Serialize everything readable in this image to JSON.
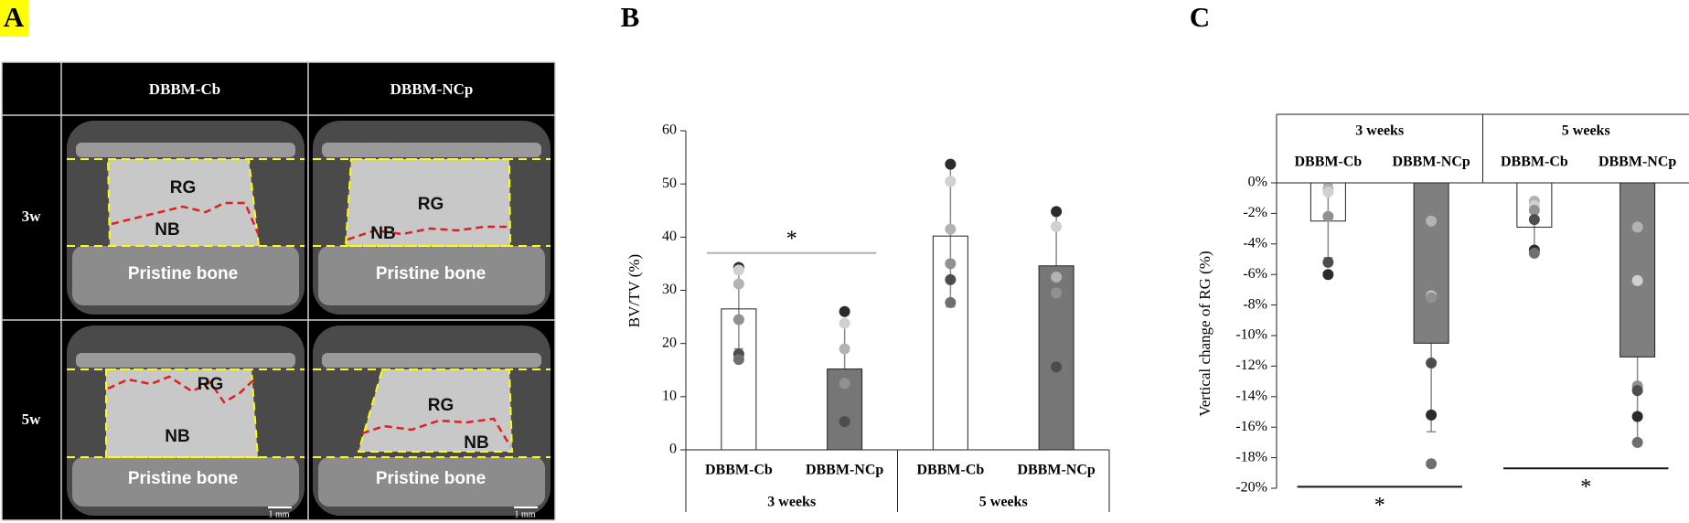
{
  "panel_a": {
    "letter": "A",
    "columns": [
      "DBBM-Cb",
      "DBBM-NCp"
    ],
    "rows": [
      "3w",
      "5w"
    ],
    "region_labels": [
      "RG",
      "NB",
      "Pristine bone"
    ],
    "scale_bar": "1 mm"
  },
  "chart_data": [
    {
      "type": "bar",
      "panel": "B",
      "y_label": "BV/TV (%)",
      "categories": [
        "DBBM-Cb",
        "DBBM-NCp",
        "DBBM-Cb",
        "DBBM-NCp"
      ],
      "groups": [
        "3 weeks",
        "5 weeks"
      ],
      "values": [
        26.5,
        15.2,
        40.2,
        34.6
      ],
      "errors": [
        7.5,
        9,
        13.3,
        10
      ],
      "colors": [
        "#ffffff",
        "#767676",
        "#ffffff",
        "#767676"
      ],
      "points": [
        [
          34.3,
          33.8,
          31.2,
          24.5,
          18,
          17
        ],
        [
          26,
          23.8,
          19,
          12.5,
          5.3
        ],
        [
          53.7,
          50.5,
          41.5,
          35,
          32,
          27.7
        ],
        [
          44.8,
          42,
          32.5,
          29.5,
          15.6
        ]
      ],
      "point_colors": [
        "#2b2b2b",
        "#d0d0d0",
        "#b3b3b3",
        "#919191",
        "#4d4d4d",
        "#6f6f6f"
      ],
      "annotations": [
        {
          "text": "*",
          "y": 37
        },
        null
      ],
      "ylim": [
        0,
        60
      ],
      "yticks": [
        0,
        10,
        20,
        30,
        40,
        50,
        60
      ]
    },
    {
      "type": "bar",
      "panel": "C",
      "y_label": "Vertical change of RG (%)",
      "categories": [
        "DBBM-Cb",
        "DBBM-NCp",
        "DBBM-Cb",
        "DBBM-NCp"
      ],
      "groups": [
        "3 weeks",
        "5 weeks"
      ],
      "values": [
        -2.5,
        -10.5,
        -2.9,
        -11.4
      ],
      "errors": [
        2.4,
        5.8,
        1.6,
        5.5
      ],
      "colors": [
        "#ffffff",
        "#7f7f7f",
        "#ffffff",
        "#7f7f7f"
      ],
      "points": [
        [
          -0.4,
          -0.6,
          -2.2,
          -5.2,
          -6.0
        ],
        [
          -2.5,
          -7.4,
          -7.5,
          -11.8,
          -15.2,
          -18.4
        ],
        [
          -1.2,
          -1.5,
          -1.8,
          -2.4,
          -4.4,
          -4.6
        ],
        [
          -2.9,
          -6.4,
          -13.3,
          -13.6,
          -15.3,
          -17.0
        ]
      ],
      "point_colors": [
        "#b3b3b3",
        "#d0d0d0",
        "#919191",
        "#4d4d4d",
        "#2b2b2b",
        "#6f6f6f"
      ],
      "annotations": [
        {
          "text": "*",
          "y": -19.9
        },
        {
          "text": "*",
          "y": -18.7
        }
      ],
      "ylim": [
        -20,
        0
      ],
      "yticks": [
        {
          "value": 0,
          "label": "0%"
        },
        {
          "value": -2,
          "label": "-2%"
        },
        {
          "value": -4,
          "label": "-4%"
        },
        {
          "value": -6,
          "label": "-6%"
        },
        {
          "value": -8,
          "label": "-8%"
        },
        {
          "value": -10,
          "label": "-10%"
        },
        {
          "value": -12,
          "label": "-12%"
        },
        {
          "value": -14,
          "label": "-14%"
        },
        {
          "value": -16,
          "label": "-16%"
        },
        {
          "value": -18,
          "label": "-18%"
        },
        {
          "value": -20,
          "label": "-20%"
        }
      ]
    }
  ]
}
